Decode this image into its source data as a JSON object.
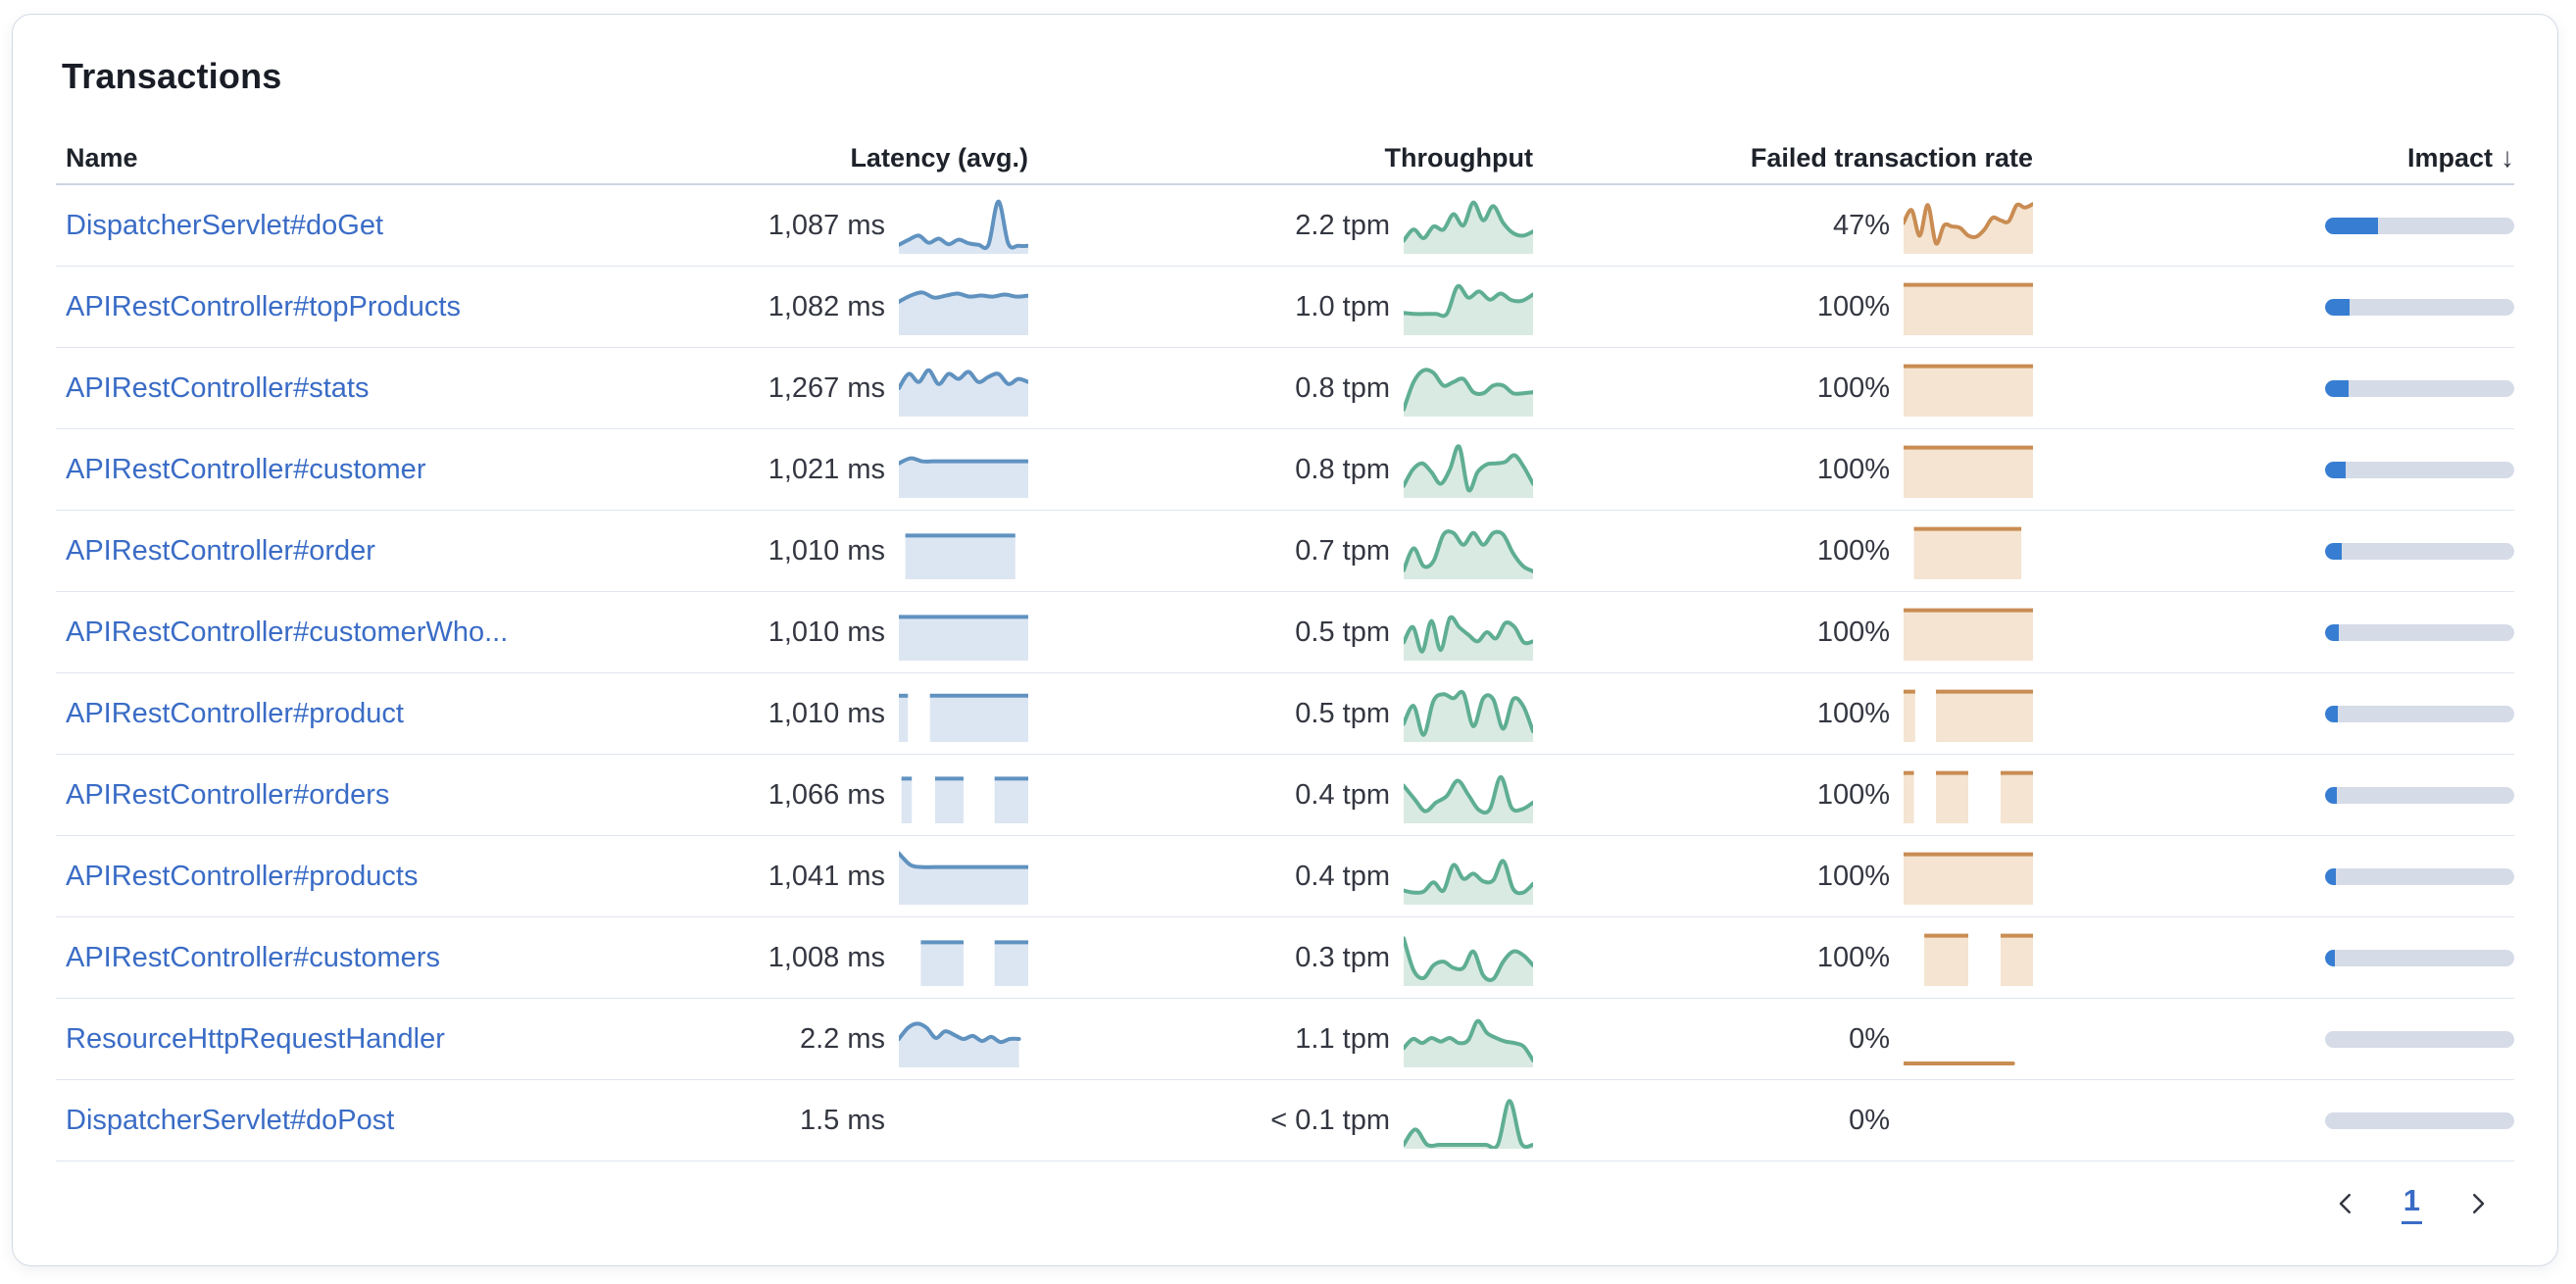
{
  "panel": {
    "title": "Transactions"
  },
  "colors": {
    "link": "#3a6cc6",
    "text": "#343741",
    "latency_line": "#6092c0",
    "latency_fill": "#dce6f2",
    "throughput_line": "#5fae93",
    "throughput_fill": "#d9eae2",
    "failed_line": "#c98c52",
    "failed_fill": "#f4e4d1",
    "impact_fill": "#377dd2",
    "impact_track": "#d5dbe7"
  },
  "table": {
    "headers": {
      "name": "Name",
      "latency": "Latency (avg.)",
      "throughput": "Throughput",
      "failed": "Failed transaction rate",
      "impact": "Impact",
      "sort_icon": "↓"
    },
    "rows": [
      {
        "name": "DispatcherServlet#doGet",
        "latency": "1,087 ms",
        "latency_spark": {
          "type": "line",
          "values": [
            0.12,
            0.22,
            0.3,
            0.16,
            0.24,
            0.13,
            0.22,
            0.15,
            0.12,
            0.12,
            0.97,
            0.14,
            0.1,
            0.1
          ]
        },
        "throughput": "2.2 tpm",
        "throughput_spark": {
          "type": "line",
          "values": [
            0.2,
            0.42,
            0.25,
            0.48,
            0.42,
            0.72,
            0.5,
            0.95,
            0.6,
            0.88,
            0.55,
            0.35,
            0.3,
            0.38
          ]
        },
        "failed": "47%",
        "failed_spark": {
          "type": "line",
          "values": [
            0.55,
            0.8,
            0.3,
            0.9,
            0.15,
            0.5,
            0.48,
            0.45,
            0.3,
            0.28,
            0.42,
            0.65,
            0.6,
            0.58,
            0.9,
            0.85,
            0.92
          ]
        },
        "impact_pct": 28
      },
      {
        "name": "APIRestController#topProducts",
        "latency": "1,082 ms",
        "latency_spark": {
          "type": "line",
          "values": [
            0.6,
            0.72,
            0.78,
            0.68,
            0.72,
            0.76,
            0.7,
            0.72,
            0.7,
            0.74,
            0.7,
            0.72
          ]
        },
        "throughput": "1.0 tpm",
        "throughput_spark": {
          "type": "line",
          "values": [
            0.38,
            0.36,
            0.36,
            0.36,
            0.36,
            0.9,
            0.68,
            0.8,
            0.64,
            0.76,
            0.63,
            0.62,
            0.74
          ]
        },
        "failed": "100%",
        "failed_spark": {
          "type": "blocks",
          "segments": [
            [
              0,
              1
            ]
          ],
          "level": 0.93
        },
        "impact_pct": 13
      },
      {
        "name": "APIRestController#stats",
        "latency": "1,267 ms",
        "latency_spark": {
          "type": "line",
          "values": [
            0.5,
            0.78,
            0.62,
            0.85,
            0.58,
            0.78,
            0.68,
            0.82,
            0.62,
            0.72,
            0.78,
            0.58,
            0.68,
            0.62
          ]
        },
        "throughput": "0.8 tpm",
        "throughput_spark": {
          "type": "line",
          "values": [
            0.08,
            0.62,
            0.85,
            0.8,
            0.55,
            0.62,
            0.68,
            0.42,
            0.4,
            0.55,
            0.55,
            0.4,
            0.4,
            0.42
          ]
        },
        "failed": "100%",
        "failed_spark": {
          "type": "blocks",
          "segments": [
            [
              0,
              1
            ]
          ],
          "level": 0.93
        },
        "impact_pct": 12.5
      },
      {
        "name": "APIRestController#customer",
        "latency": "1,021 ms",
        "latency_spark": {
          "type": "line",
          "values": [
            0.62,
            0.72,
            0.66,
            0.66,
            0.66,
            0.66,
            0.66,
            0.66,
            0.66,
            0.66,
            0.66,
            0.66
          ]
        },
        "throughput": "0.8 tpm",
        "throughput_spark": {
          "type": "line",
          "values": [
            0.18,
            0.5,
            0.62,
            0.45,
            0.22,
            0.5,
            0.95,
            0.1,
            0.45,
            0.6,
            0.62,
            0.65,
            0.78,
            0.55,
            0.22
          ]
        },
        "failed": "100%",
        "failed_spark": {
          "type": "blocks",
          "segments": [
            [
              0,
              1
            ]
          ],
          "level": 0.93
        },
        "impact_pct": 11
      },
      {
        "name": "APIRestController#order",
        "latency": "1,010 ms",
        "latency_spark": {
          "type": "blocks",
          "segments": [
            [
              0.05,
              0.9
            ]
          ],
          "level": 0.8
        },
        "throughput": "0.7 tpm",
        "throughput_spark": {
          "type": "line",
          "values": [
            0.12,
            0.55,
            0.2,
            0.3,
            0.82,
            0.85,
            0.62,
            0.85,
            0.62,
            0.85,
            0.82,
            0.45,
            0.2,
            0.1
          ]
        },
        "failed": "100%",
        "failed_spark": {
          "type": "blocks",
          "segments": [
            [
              0.08,
              0.91
            ]
          ],
          "level": 0.93
        },
        "impact_pct": 9
      },
      {
        "name": "APIRestController#customerWho...",
        "latency": "1,010 ms",
        "latency_spark": {
          "type": "blocks",
          "segments": [
            [
              0,
              1
            ]
          ],
          "level": 0.8
        },
        "throughput": "0.5 tpm",
        "throughput_spark": {
          "type": "line",
          "values": [
            0.3,
            0.6,
            0.12,
            0.72,
            0.15,
            0.78,
            0.6,
            0.45,
            0.32,
            0.5,
            0.38,
            0.68,
            0.6,
            0.3,
            0.32
          ]
        },
        "failed": "100%",
        "failed_spark": {
          "type": "blocks",
          "segments": [
            [
              0,
              1
            ]
          ],
          "level": 0.93
        },
        "impact_pct": 7
      },
      {
        "name": "APIRestController#product",
        "latency": "1,010 ms",
        "latency_spark": {
          "type": "blocks",
          "segments": [
            [
              0,
              0.07
            ],
            [
              0.24,
              1
            ]
          ],
          "level": 0.85
        },
        "throughput": "0.5 tpm",
        "throughput_spark": {
          "type": "line",
          "values": [
            0.3,
            0.65,
            0.08,
            0.75,
            0.88,
            0.8,
            0.9,
            0.25,
            0.8,
            0.78,
            0.2,
            0.78,
            0.65,
            0.15
          ]
        },
        "failed": "100%",
        "failed_spark": {
          "type": "blocks",
          "segments": [
            [
              0,
              0.09
            ],
            [
              0.25,
              1
            ]
          ],
          "level": 0.93
        },
        "impact_pct": 6.5
      },
      {
        "name": "APIRestController#orders",
        "latency": "1,066 ms",
        "latency_spark": {
          "type": "blocks",
          "segments": [
            [
              0.02,
              0.1
            ],
            [
              0.28,
              0.5
            ],
            [
              0.74,
              1
            ]
          ],
          "level": 0.82
        },
        "throughput": "0.4 tpm",
        "throughput_spark": {
          "type": "line",
          "values": [
            0.68,
            0.42,
            0.18,
            0.35,
            0.48,
            0.78,
            0.5,
            0.2,
            0.22,
            0.85,
            0.25,
            0.22,
            0.35
          ]
        },
        "failed": "100%",
        "failed_spark": {
          "type": "blocks",
          "segments": [
            [
              0,
              0.08
            ],
            [
              0.25,
              0.5
            ],
            [
              0.75,
              1
            ]
          ],
          "level": 0.93
        },
        "impact_pct": 6
      },
      {
        "name": "APIRestController#products",
        "latency": "1,041 ms",
        "latency_spark": {
          "type": "line",
          "values": [
            0.95,
            0.72,
            0.68,
            0.68,
            0.68,
            0.68,
            0.68,
            0.68,
            0.68,
            0.68,
            0.68,
            0.68
          ]
        },
        "throughput": "0.4 tpm",
        "throughput_spark": {
          "type": "line",
          "values": [
            0.22,
            0.18,
            0.2,
            0.38,
            0.22,
            0.72,
            0.45,
            0.55,
            0.4,
            0.42,
            0.8,
            0.25,
            0.18,
            0.35
          ]
        },
        "failed": "100%",
        "failed_spark": {
          "type": "blocks",
          "segments": [
            [
              0,
              1
            ]
          ],
          "level": 0.93
        },
        "impact_pct": 5.5
      },
      {
        "name": "APIRestController#customers",
        "latency": "1,008 ms",
        "latency_spark": {
          "type": "blocks",
          "segments": [
            [
              0.17,
              0.5
            ],
            [
              0.74,
              1
            ]
          ],
          "level": 0.8
        },
        "throughput": "0.3 tpm",
        "throughput_spark": {
          "type": "line",
          "values": [
            0.88,
            0.25,
            0.1,
            0.35,
            0.42,
            0.3,
            0.3,
            0.62,
            0.15,
            0.08,
            0.42,
            0.62,
            0.55,
            0.35
          ]
        },
        "failed": "100%",
        "failed_spark": {
          "type": "blocks",
          "segments": [
            [
              0.16,
              0.5
            ],
            [
              0.75,
              1
            ]
          ],
          "level": 0.93
        },
        "impact_pct": 5
      },
      {
        "name": "ResourceHttpRequestHandler",
        "latency": "2.2 ms",
        "latency_spark": {
          "type": "line",
          "values": [
            0.5,
            0.72,
            0.8,
            0.72,
            0.52,
            0.65,
            0.58,
            0.5,
            0.56,
            0.46,
            0.54,
            0.44,
            0.5,
            0.5,
            null
          ]
        },
        "throughput": "1.1 tpm",
        "throughput_spark": {
          "type": "line",
          "values": [
            0.32,
            0.5,
            0.42,
            0.52,
            0.45,
            0.52,
            0.42,
            0.48,
            0.85,
            0.62,
            0.52,
            0.45,
            0.42,
            0.35,
            0.08
          ]
        },
        "failed": "0%",
        "failed_spark": {
          "type": "line",
          "no_fill": true,
          "values": [
            0.02,
            0.02,
            0.02,
            0.02,
            0.02,
            0.02,
            0.02,
            0.02,
            0.02,
            0.02,
            0.02,
            0.02,
            null,
            null
          ]
        },
        "impact_pct": 0
      },
      {
        "name": "DispatcherServlet#doPost",
        "latency": "1.5 ms",
        "latency_spark": {
          "type": "none"
        },
        "throughput": "< 0.1 tpm",
        "throughput_spark": {
          "type": "line",
          "values": [
            0.02,
            0.32,
            0.02,
            0.02,
            0.02,
            0.02,
            0.02,
            0.02,
            0.02,
            0.88,
            0.05,
            0.02
          ]
        },
        "failed": "0%",
        "failed_spark": {
          "type": "none"
        },
        "impact_pct": 0
      }
    ]
  },
  "pagination": {
    "page": "1",
    "prev_icon": "chevron-left",
    "next_icon": "chevron-right"
  }
}
